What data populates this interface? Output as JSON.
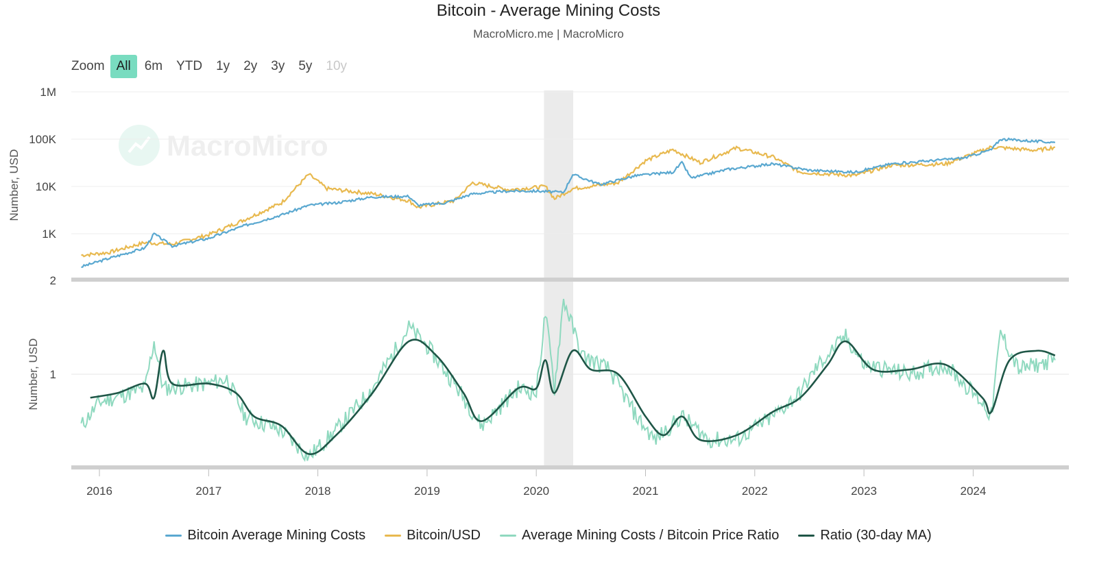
{
  "header": {
    "title": "Bitcoin - Average Mining Costs",
    "subtitle": "MacroMicro.me | MacroMicro"
  },
  "zoom": {
    "label": "Zoom",
    "buttons": [
      {
        "label": "All",
        "state": "active"
      },
      {
        "label": "6m",
        "state": "normal"
      },
      {
        "label": "YTD",
        "state": "normal"
      },
      {
        "label": "1y",
        "state": "normal"
      },
      {
        "label": "2y",
        "state": "normal"
      },
      {
        "label": "3y",
        "state": "normal"
      },
      {
        "label": "5y",
        "state": "normal"
      },
      {
        "label": "10y",
        "state": "disabled"
      }
    ]
  },
  "watermark": "MacroMicro",
  "colors": {
    "mining_cost": "#5aa8d0",
    "btc_usd": "#e8b94f",
    "ratio": "#8fd9bf",
    "ratio_ma": "#1f5647",
    "shade": "#ebebeb"
  },
  "chart_data": [
    {
      "type": "line",
      "panel": "upper",
      "ylabel": "Number, USD",
      "yscale": "log",
      "yticks": [
        "1M",
        "100K",
        "10K",
        "1K"
      ],
      "ylim": [
        2,
        1000000
      ],
      "shaded_period": [
        "2020-02",
        "2020-04"
      ],
      "series": [
        {
          "name": "Bitcoin Average Mining Costs",
          "points": [
            [
              "2015-11",
              200
            ],
            [
              "2016-02",
              300
            ],
            [
              "2016-06",
              500
            ],
            [
              "2016-07",
              1000
            ],
            [
              "2016-09",
              550
            ],
            [
              "2017-01",
              800
            ],
            [
              "2017-05",
              1500
            ],
            [
              "2017-09",
              2500
            ],
            [
              "2017-12",
              4000
            ],
            [
              "2018-03",
              4500
            ],
            [
              "2018-07",
              6000
            ],
            [
              "2018-11",
              6200
            ],
            [
              "2018-12",
              4000
            ],
            [
              "2019-03",
              4500
            ],
            [
              "2019-06",
              7000
            ],
            [
              "2019-10",
              8000
            ],
            [
              "2020-01",
              8000
            ],
            [
              "2020-04",
              7500
            ],
            [
              "2020-05",
              18000
            ],
            [
              "2020-08",
              11000
            ],
            [
              "2020-12",
              17000
            ],
            [
              "2021-04",
              20000
            ],
            [
              "2021-05",
              32000
            ],
            [
              "2021-06",
              15000
            ],
            [
              "2021-10",
              23000
            ],
            [
              "2022-03",
              30000
            ],
            [
              "2022-07",
              22000
            ],
            [
              "2022-12",
              20000
            ],
            [
              "2023-04",
              30000
            ],
            [
              "2023-12",
              40000
            ],
            [
              "2024-03",
              60000
            ],
            [
              "2024-04",
              100000
            ],
            [
              "2024-10",
              85000
            ]
          ]
        },
        {
          "name": "Bitcoin/USD",
          "points": [
            [
              "2015-11",
              350
            ],
            [
              "2016-02",
              400
            ],
            [
              "2016-06",
              650
            ],
            [
              "2016-09",
              600
            ],
            [
              "2017-01",
              950
            ],
            [
              "2017-05",
              2000
            ],
            [
              "2017-09",
              4500
            ],
            [
              "2017-12",
              18000
            ],
            [
              "2018-02",
              9000
            ],
            [
              "2018-07",
              7000
            ],
            [
              "2018-11",
              5000
            ],
            [
              "2018-12",
              3600
            ],
            [
              "2019-04",
              5000
            ],
            [
              "2019-06",
              12000
            ],
            [
              "2019-10",
              8500
            ],
            [
              "2020-02",
              10000
            ],
            [
              "2020-03",
              5500
            ],
            [
              "2020-05",
              9000
            ],
            [
              "2020-10",
              12000
            ],
            [
              "2021-01",
              35000
            ],
            [
              "2021-04",
              60000
            ],
            [
              "2021-07",
              32000
            ],
            [
              "2021-11",
              65000
            ],
            [
              "2022-03",
              42000
            ],
            [
              "2022-06",
              20000
            ],
            [
              "2022-12",
              17000
            ],
            [
              "2023-04",
              28000
            ],
            [
              "2023-10",
              30000
            ],
            [
              "2024-03",
              68000
            ],
            [
              "2024-08",
              58000
            ],
            [
              "2024-10",
              68000
            ]
          ]
        }
      ]
    },
    {
      "type": "line",
      "panel": "lower",
      "ylabel": "Number, USD",
      "yticks": [
        "2",
        "1"
      ],
      "series": [
        {
          "name": "Average Mining Costs / Bitcoin Price Ratio",
          "points": [
            [
              "2015-11",
              0.45
            ],
            [
              "2016-01",
              0.7
            ],
            [
              "2016-06",
              0.85
            ],
            [
              "2016-07",
              1.35
            ],
            [
              "2016-08",
              0.85
            ],
            [
              "2017-01",
              0.9
            ],
            [
              "2017-03",
              0.95
            ],
            [
              "2017-05",
              0.55
            ],
            [
              "2017-09",
              0.4
            ],
            [
              "2017-12",
              0.12
            ],
            [
              "2018-03",
              0.4
            ],
            [
              "2018-07",
              0.85
            ],
            [
              "2018-11",
              1.5
            ],
            [
              "2019-01",
              1.3
            ],
            [
              "2019-04",
              0.9
            ],
            [
              "2019-07",
              0.45
            ],
            [
              "2019-11",
              0.85
            ],
            [
              "2020-01",
              0.8
            ],
            [
              "2020-02",
              1.65
            ],
            [
              "2020-03",
              0.85
            ],
            [
              "2020-04",
              1.8
            ],
            [
              "2020-06",
              1.2
            ],
            [
              "2020-09",
              1.05
            ],
            [
              "2020-12",
              0.55
            ],
            [
              "2021-02",
              0.3
            ],
            [
              "2021-05",
              0.55
            ],
            [
              "2021-08",
              0.3
            ],
            [
              "2021-11",
              0.3
            ],
            [
              "2022-03",
              0.55
            ],
            [
              "2022-06",
              0.8
            ],
            [
              "2022-08",
              1.1
            ],
            [
              "2022-11",
              1.4
            ],
            [
              "2023-01",
              1.1
            ],
            [
              "2023-06",
              1.0
            ],
            [
              "2023-10",
              1.1
            ],
            [
              "2024-02",
              0.7
            ],
            [
              "2024-03",
              0.55
            ],
            [
              "2024-04",
              1.45
            ],
            [
              "2024-06",
              1.05
            ],
            [
              "2024-10",
              1.15
            ]
          ]
        },
        {
          "name": "Ratio (30-day MA)",
          "points": [
            [
              "2015-12",
              0.75
            ],
            [
              "2016-03",
              0.8
            ],
            [
              "2016-06",
              0.9
            ],
            [
              "2016-07",
              0.75
            ],
            [
              "2016-08",
              1.25
            ],
            [
              "2016-09",
              0.9
            ],
            [
              "2017-01",
              0.9
            ],
            [
              "2017-04",
              0.8
            ],
            [
              "2017-06",
              0.55
            ],
            [
              "2017-09",
              0.45
            ],
            [
              "2017-12",
              0.15
            ],
            [
              "2018-03",
              0.35
            ],
            [
              "2018-07",
              0.8
            ],
            [
              "2018-11",
              1.35
            ],
            [
              "2019-02",
              1.2
            ],
            [
              "2019-05",
              0.8
            ],
            [
              "2019-07",
              0.5
            ],
            [
              "2019-11",
              0.85
            ],
            [
              "2020-01",
              0.85
            ],
            [
              "2020-02",
              1.15
            ],
            [
              "2020-03",
              0.8
            ],
            [
              "2020-05",
              1.25
            ],
            [
              "2020-07",
              1.05
            ],
            [
              "2020-10",
              1.0
            ],
            [
              "2021-01",
              0.55
            ],
            [
              "2021-03",
              0.35
            ],
            [
              "2021-05",
              0.55
            ],
            [
              "2021-07",
              0.3
            ],
            [
              "2021-11",
              0.35
            ],
            [
              "2022-03",
              0.6
            ],
            [
              "2022-06",
              0.75
            ],
            [
              "2022-09",
              1.1
            ],
            [
              "2022-11",
              1.35
            ],
            [
              "2023-02",
              1.05
            ],
            [
              "2023-06",
              1.05
            ],
            [
              "2023-10",
              1.1
            ],
            [
              "2024-02",
              0.75
            ],
            [
              "2024-03",
              0.6
            ],
            [
              "2024-05",
              1.15
            ],
            [
              "2024-08",
              1.25
            ],
            [
              "2024-10",
              1.2
            ]
          ]
        }
      ]
    }
  ],
  "xaxis": {
    "ticks": [
      "2016",
      "2017",
      "2018",
      "2019",
      "2020",
      "2021",
      "2022",
      "2023",
      "2024"
    ]
  },
  "legend": [
    {
      "label": "Bitcoin Average Mining Costs",
      "color": "#5aa8d0"
    },
    {
      "label": "Bitcoin/USD",
      "color": "#e8b94f"
    },
    {
      "label": "Average Mining Costs / Bitcoin Price Ratio",
      "color": "#8fd9bf"
    },
    {
      "label": "Ratio (30-day MA)",
      "color": "#1f5647"
    }
  ]
}
